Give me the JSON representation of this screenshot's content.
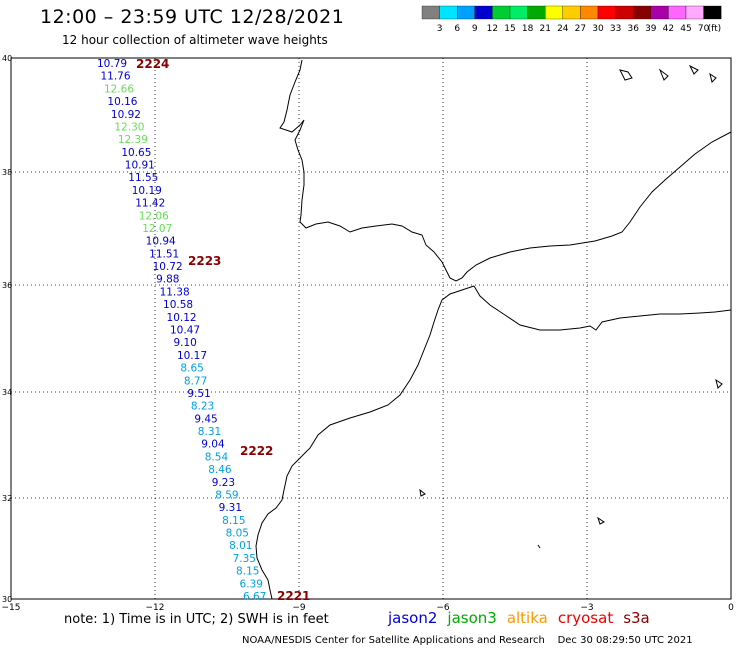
{
  "header": {
    "title": "12:00 – 23:59 UTC 12/28/2021",
    "subtitle": "12 hour collection of altimeter wave heights"
  },
  "colorbar": {
    "unit": "(ft)",
    "colors": [
      "#808080",
      "#00e5ff",
      "#00a0ff",
      "#0000d0",
      "#00cc33",
      "#00ee66",
      "#00aa00",
      "#ffff00",
      "#ffcc00",
      "#ff8800",
      "#ff0000",
      "#cc0000",
      "#880000",
      "#aa00aa",
      "#ff66ff",
      "#ffaaff",
      "#000000"
    ],
    "labels": [
      "3",
      "6",
      "9",
      "12",
      "15",
      "18",
      "21",
      "24",
      "27",
      "30",
      "33",
      "36",
      "39",
      "42",
      "45",
      "70"
    ]
  },
  "map": {
    "lat_labels": [
      "40",
      "38",
      "36",
      "34",
      "32",
      "30"
    ],
    "lon_labels": [
      "−15",
      "−12",
      "−9",
      "−6",
      "−3",
      "0"
    ]
  },
  "track": {
    "observations": [
      {
        "value": "10.79",
        "color": "#0000d0"
      },
      {
        "value": "11.76",
        "color": "#0000d0"
      },
      {
        "value": "12.66",
        "color": "#66dd55"
      },
      {
        "value": "10.16",
        "color": "#0000d0"
      },
      {
        "value": "10.92",
        "color": "#0000d0"
      },
      {
        "value": "12.30",
        "color": "#66dd55"
      },
      {
        "value": "12.39",
        "color": "#66dd55"
      },
      {
        "value": "10.65",
        "color": "#0000d0"
      },
      {
        "value": "10.91",
        "color": "#0000d0"
      },
      {
        "value": "11.55",
        "color": "#0000d0"
      },
      {
        "value": "10.19",
        "color": "#0000d0"
      },
      {
        "value": "11.42",
        "color": "#0000d0"
      },
      {
        "value": "12.06",
        "color": "#66dd55"
      },
      {
        "value": "12.07",
        "color": "#66dd55"
      },
      {
        "value": "10.94",
        "color": "#0000d0"
      },
      {
        "value": "11.51",
        "color": "#0000d0"
      },
      {
        "value": "10.72",
        "color": "#0000d0"
      },
      {
        "value": "9.88",
        "color": "#0000d0"
      },
      {
        "value": "11.38",
        "color": "#0000d0"
      },
      {
        "value": "10.58",
        "color": "#0000d0"
      },
      {
        "value": "10.12",
        "color": "#0000d0"
      },
      {
        "value": "10.47",
        "color": "#0000d0"
      },
      {
        "value": "9.10",
        "color": "#0000d0"
      },
      {
        "value": "10.17",
        "color": "#0000d0"
      },
      {
        "value": "8.65",
        "color": "#00a0e0"
      },
      {
        "value": "8.77",
        "color": "#00a0e0"
      },
      {
        "value": "9.51",
        "color": "#0000d0"
      },
      {
        "value": "8.23",
        "color": "#00a0e0"
      },
      {
        "value": "9.45",
        "color": "#0000d0"
      },
      {
        "value": "8.31",
        "color": "#00a0e0"
      },
      {
        "value": "9.04",
        "color": "#0000d0"
      },
      {
        "value": "8.54",
        "color": "#00a0e0"
      },
      {
        "value": "8.46",
        "color": "#00a0e0"
      },
      {
        "value": "9.23",
        "color": "#0000d0"
      },
      {
        "value": "8.59",
        "color": "#00a0e0"
      },
      {
        "value": "9.31",
        "color": "#0000d0"
      },
      {
        "value": "8.15",
        "color": "#00a0e0"
      },
      {
        "value": "8.05",
        "color": "#00a0e0"
      },
      {
        "value": "8.01",
        "color": "#00a0e0"
      },
      {
        "value": "7.35",
        "color": "#00a0e0"
      },
      {
        "value": "8.15",
        "color": "#00a0e0"
      },
      {
        "value": "6.39",
        "color": "#00a0e0"
      },
      {
        "value": "6.67",
        "color": "#00a0e0"
      }
    ],
    "pass_labels": [
      "2224",
      "2223",
      "2222",
      "2221"
    ]
  },
  "footer": {
    "note": "note:  1) Time is in UTC;  2) SWH is in feet",
    "legend": [
      {
        "name": "jason2",
        "color": "#0000dd"
      },
      {
        "name": "jason3",
        "color": "#00aa00"
      },
      {
        "name": "altika",
        "color": "#ff9900"
      },
      {
        "name": "cryosat",
        "color": "#ee0000"
      },
      {
        "name": "s3a",
        "color": "#8b0000"
      }
    ],
    "credit": "NOAA/NESDIS Center for Satellite Applications and Research",
    "timestamp": "Dec 30 08:29:50 UTC 2021"
  }
}
